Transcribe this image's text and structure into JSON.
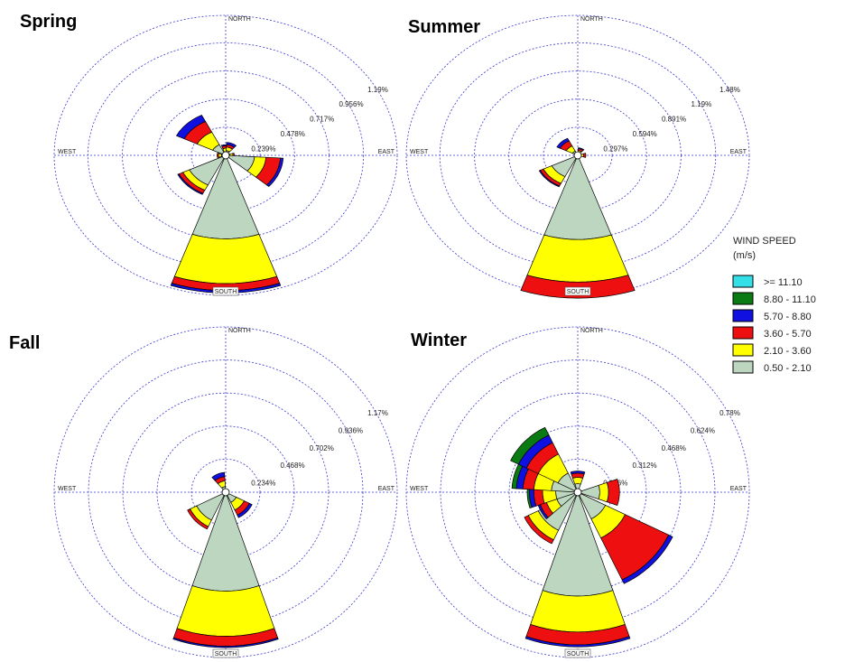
{
  "chart_data": {
    "type": "windrose",
    "directions": [
      0,
      22.5,
      45,
      67.5,
      90,
      112.5,
      135,
      157.5,
      180,
      202.5,
      225,
      247.5,
      270,
      292.5,
      315,
      337.5
    ],
    "legend_title": "WIND SPEED",
    "legend_unit": "(m/s)",
    "speed_bins": [
      {
        "name": ">= 11.10",
        "color": "#33e0e8"
      },
      {
        "name": "8.80 - 11.10",
        "color": "#0a7a12"
      },
      {
        "name": "5.70 - 8.80",
        "color": "#1010e0"
      },
      {
        "name": "3.60 - 5.70",
        "color": "#ee1010"
      },
      {
        "name": "2.10 - 3.60",
        "color": "#ffff00"
      },
      {
        "name": "0.50 - 2.10",
        "color": "#bcd6c0"
      }
    ],
    "panels": [
      {
        "title": "Spring",
        "compass_labels": [
          "NORTH",
          "EAST",
          "SOUTH",
          "WEST"
        ],
        "rlim": [
          0,
          1.19
        ],
        "rticks": [
          {
            "value": 0.239,
            "label": "0.239%"
          },
          {
            "value": 0.478,
            "label": "0.478%"
          },
          {
            "value": 0.717,
            "label": "0.717%"
          },
          {
            "value": 0.956,
            "label": "0.956%"
          },
          {
            "value": 1.19,
            "label": "1.19%"
          }
        ],
        "series": [
          {
            "values": [
              0,
              0,
              0,
              0,
              0,
              0,
              0,
              0,
              0,
              0,
              0,
              0,
              0,
              0,
              0,
              0
            ]
          },
          {
            "values": [
              0,
              0,
              0,
              0,
              0,
              0,
              0,
              0,
              0,
              0,
              0,
              0,
              0,
              0,
              0,
              0
            ]
          },
          {
            "values": [
              0.01,
              0.02,
              0,
              0,
              0,
              0.02,
              0,
              0,
              0.02,
              0,
              0.01,
              0,
              0,
              0,
              0.06,
              0
            ]
          },
          {
            "values": [
              0.02,
              0.02,
              0,
              0,
              0.01,
              0.1,
              0,
              0,
              0.06,
              0,
              0.03,
              0,
              0.01,
              0,
              0.1,
              0
            ]
          },
          {
            "values": [
              0.03,
              0.03,
              0,
              0,
              0.02,
              0.08,
              0,
              0,
              0.38,
              0,
              0.05,
              0,
              0.02,
              0,
              0.12,
              0
            ]
          },
          {
            "values": [
              0.03,
              0.04,
              0,
              0,
              0.03,
              0.2,
              0,
              0,
              0.71,
              0,
              0.28,
              0,
              0.03,
              0,
              0.1,
              0
            ]
          }
        ]
      },
      {
        "title": "Summer",
        "compass_labels": [
          "NORTH",
          "EAST",
          "SOUTH",
          "WEST"
        ],
        "rlim": [
          0,
          1.48
        ],
        "rticks": [
          {
            "value": 0.297,
            "label": "0.297%"
          },
          {
            "value": 0.594,
            "label": "0.594%"
          },
          {
            "value": 0.891,
            "label": "0.891%"
          },
          {
            "value": 1.19,
            "label": "1.19%"
          },
          {
            "value": 1.48,
            "label": "1.48%"
          }
        ],
        "series": [
          {
            "values": [
              0,
              0,
              0,
              0,
              0,
              0,
              0,
              0,
              0,
              0,
              0,
              0,
              0,
              0,
              0,
              0
            ]
          },
          {
            "values": [
              0,
              0,
              0,
              0,
              0,
              0,
              0,
              0,
              0,
              0,
              0,
              0,
              0,
              0,
              0,
              0
            ]
          },
          {
            "values": [
              0,
              0.01,
              0,
              0,
              0,
              0,
              0,
              0,
              0,
              0,
              0.01,
              0,
              0,
              0,
              0.03,
              0
            ]
          },
          {
            "values": [
              0,
              0.02,
              0,
              0,
              0.02,
              0,
              0,
              0,
              0.17,
              0,
              0.03,
              0,
              0,
              0,
              0.06,
              0
            ]
          },
          {
            "values": [
              0,
              0.02,
              0,
              0,
              0.02,
              0,
              0,
              0,
              0.45,
              0,
              0.08,
              0,
              0,
              0,
              0.06,
              0
            ]
          },
          {
            "values": [
              0,
              0.03,
              0,
              0,
              0.03,
              0,
              0,
              0,
              0.89,
              0,
              0.25,
              0,
              0,
              0,
              0.05,
              0
            ]
          }
        ]
      },
      {
        "title": "Fall",
        "compass_labels": [
          "NORTH",
          "EAST",
          "SOUTH",
          "WEST"
        ],
        "rlim": [
          0,
          1.17
        ],
        "rticks": [
          {
            "value": 0.234,
            "label": "0.234%"
          },
          {
            "value": 0.468,
            "label": "0.468%"
          },
          {
            "value": 0.702,
            "label": "0.702%"
          },
          {
            "value": 0.936,
            "label": "0.936%"
          },
          {
            "value": 1.17,
            "label": "1.17%"
          }
        ],
        "series": [
          {
            "values": [
              0,
              0,
              0,
              0,
              0,
              0,
              0,
              0,
              0,
              0,
              0,
              0,
              0,
              0,
              0,
              0
            ]
          },
          {
            "values": [
              0,
              0,
              0,
              0,
              0,
              0,
              0,
              0,
              0,
              0,
              0,
              0,
              0,
              0,
              0,
              0
            ]
          },
          {
            "values": [
              0,
              0,
              0,
              0,
              0,
              0,
              0.02,
              0,
              0.01,
              0,
              0,
              0,
              0,
              0,
              0,
              0.03
            ]
          },
          {
            "values": [
              0,
              0,
              0,
              0,
              0,
              0,
              0.04,
              0,
              0.07,
              0,
              0.02,
              0,
              0,
              0,
              0,
              0.03
            ]
          },
          {
            "values": [
              0,
              0,
              0,
              0,
              0,
              0,
              0.06,
              0,
              0.32,
              0,
              0.05,
              0,
              0,
              0,
              0,
              0.04
            ]
          },
          {
            "values": [
              0,
              0,
              0,
              0,
              0,
              0,
              0.08,
              0,
              0.7,
              0,
              0.22,
              0,
              0,
              0,
              0,
              0.04
            ]
          }
        ]
      },
      {
        "title": "Winter",
        "compass_labels": [
          "NORTH",
          "EAST",
          "SOUTH",
          "WEST"
        ],
        "rlim": [
          0,
          0.78
        ],
        "rticks": [
          {
            "value": 0.156,
            "label": "0.156%"
          },
          {
            "value": 0.312,
            "label": "0.312%"
          },
          {
            "value": 0.468,
            "label": "0.468%"
          },
          {
            "value": 0.624,
            "label": "0.624%"
          },
          {
            "value": 0.78,
            "label": "0.78%"
          }
        ],
        "series": [
          {
            "values": [
              0,
              0,
              0,
              0,
              0,
              0,
              0,
              0,
              0,
              0,
              0,
              0,
              0,
              0,
              0,
              0
            ]
          },
          {
            "values": [
              0,
              0,
              0,
              0,
              0,
              0,
              0,
              0,
              0,
              0,
              0,
              0,
              0.01,
              0.02,
              0.04,
              0
            ]
          },
          {
            "values": [
              0.01,
              0,
              0,
              0,
              0,
              0,
              0.02,
              0,
              0.01,
              0,
              0,
              0.01,
              0.02,
              0.03,
              0.04,
              0
            ]
          },
          {
            "values": [
              0.02,
              0,
              0,
              0,
              0.05,
              0,
              0.22,
              0,
              0.06,
              0,
              0.02,
              0.03,
              0.04,
              0.05,
              0.06,
              0
            ]
          },
          {
            "values": [
              0.03,
              0,
              0,
              0,
              0.04,
              0,
              0.1,
              0,
              0.17,
              0,
              0.05,
              0.05,
              0.06,
              0.08,
              0.1,
              0
            ]
          },
          {
            "values": [
              0.04,
              0,
              0,
              0,
              0.1,
              0,
              0.14,
              0,
              0.49,
              0,
              0.2,
              0.1,
              0.1,
              0.12,
              0.1,
              0
            ]
          }
        ]
      }
    ]
  }
}
